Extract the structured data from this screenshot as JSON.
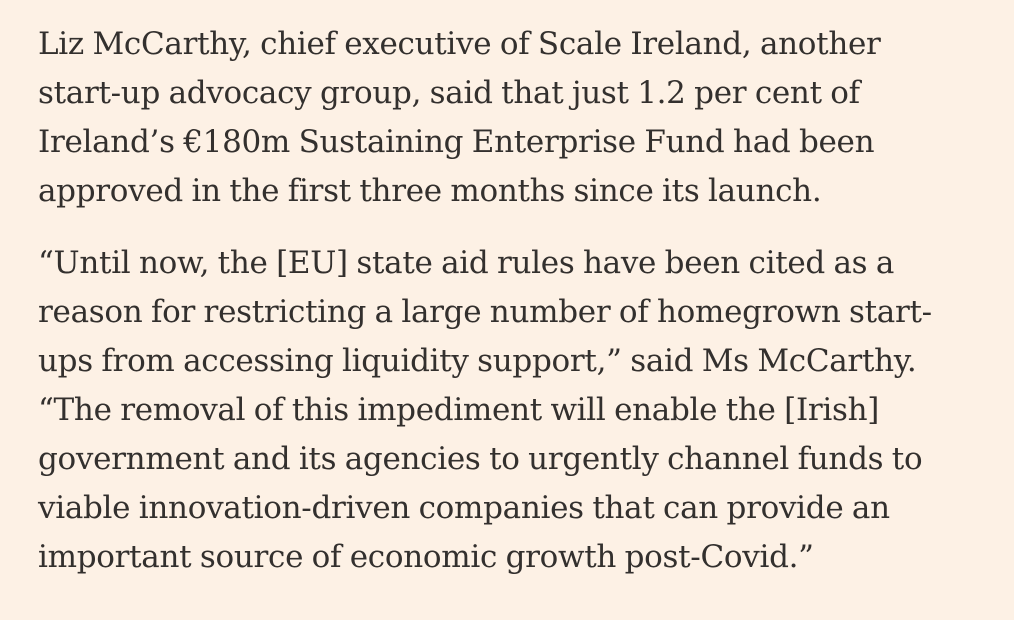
{
  "article": {
    "paragraphs": [
      {
        "lines": [
          "Liz McCarthy, chief executive of Scale Ireland, another",
          "start-up advocacy group, said that just 1.2 per cent of",
          "Ireland’s €180m Sustaining Enterprise Fund had been",
          "approved in the first three months since its launch."
        ]
      },
      {
        "lines": [
          "“Until now, the [EU] state aid rules have been cited as a",
          "reason for restricting a large number of homegrown start-",
          "ups from accessing liquidity support,” said Ms McCarthy.",
          "“The removal of this impediment will enable the [Irish]",
          "government and its agencies to urgently channel funds to",
          "viable innovation-driven companies that can provide an",
          "important source of economic growth post-Covid.”"
        ]
      }
    ]
  }
}
